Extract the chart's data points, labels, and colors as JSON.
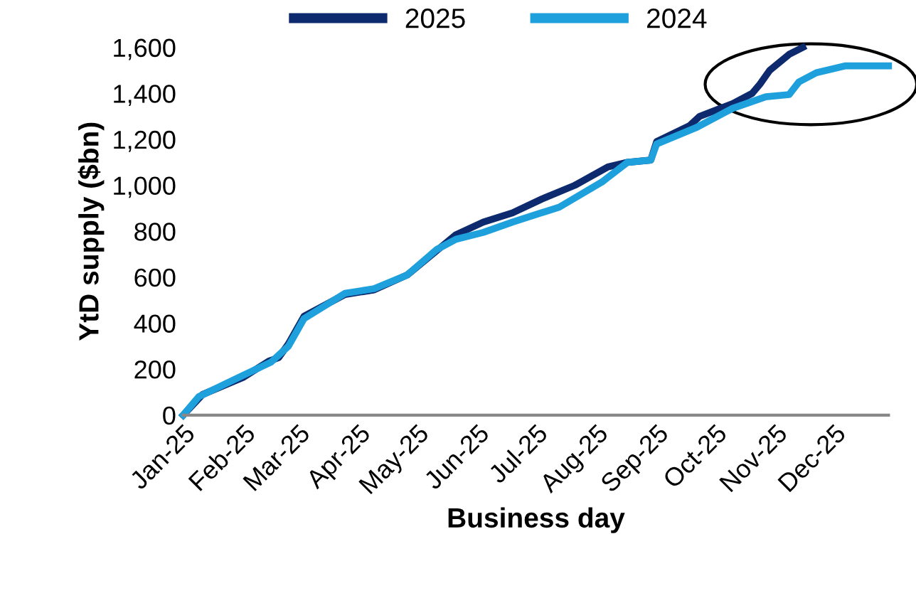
{
  "chart_data": {
    "type": "line",
    "xlabel": "Business day",
    "ylabel": "YtD supply ($bn)",
    "xlim": [
      "2025-01-01",
      "2025-12-29"
    ],
    "xticks": [
      {
        "value": "2025-01-01",
        "label": "Jan-25"
      },
      {
        "value": "2025-02-01",
        "label": "Feb-25"
      },
      {
        "value": "2025-03-01",
        "label": "Mar-25"
      },
      {
        "value": "2025-04-01",
        "label": "Apr-25"
      },
      {
        "value": "2025-05-01",
        "label": "May-25"
      },
      {
        "value": "2025-06-01",
        "label": "Jun-25"
      },
      {
        "value": "2025-07-01",
        "label": "Jul-25"
      },
      {
        "value": "2025-08-01",
        "label": "Aug-25"
      },
      {
        "value": "2025-09-01",
        "label": "Sep-25"
      },
      {
        "value": "2025-10-01",
        "label": "Oct-25"
      },
      {
        "value": "2025-11-01",
        "label": "Nov-25"
      },
      {
        "value": "2025-12-01",
        "label": "Dec-25"
      }
    ],
    "ylim": [
      0,
      1600
    ],
    "yticks": [
      0,
      {
        "value": 200,
        "label": "200"
      },
      {
        "value": 400,
        "label": "400"
      },
      {
        "value": 600,
        "label": "600"
      },
      {
        "value": 800,
        "label": "800"
      },
      {
        "value": 1000,
        "label": "1,000"
      },
      {
        "value": 1200,
        "label": "1,200"
      },
      {
        "value": 1400,
        "label": "1,400"
      },
      {
        "value": 1600,
        "label": "1,600"
      }
    ],
    "grid": false,
    "legend": "top",
    "line_style": "solid",
    "marker": "none",
    "series": [
      {
        "name": "2025",
        "color": "#0d2a6e",
        "x": [
          "2025-01-01",
          "2025-01-11",
          "2025-02-01",
          "2025-02-14",
          "2025-02-19",
          "2025-02-24",
          "2025-03-04",
          "2025-03-25",
          "2025-04-09",
          "2025-04-26",
          "2025-05-11",
          "2025-05-21",
          "2025-06-04",
          "2025-06-19",
          "2025-07-04",
          "2025-07-21",
          "2025-08-07",
          "2025-08-17",
          "2025-08-29",
          "2025-09-01",
          "2025-09-18",
          "2025-09-23",
          "2025-10-10",
          "2025-10-20",
          "2025-10-24",
          "2025-10-29",
          "2025-11-08",
          "2025-11-15"
        ],
        "values": [
          0,
          90,
          165,
          235,
          250,
          310,
          430,
          525,
          545,
          610,
          715,
          785,
          840,
          880,
          940,
          1000,
          1080,
          1100,
          1110,
          1190,
          1260,
          1300,
          1355,
          1400,
          1440,
          1500,
          1570,
          1600
        ]
      },
      {
        "name": "2024",
        "color": "#1ea0dc",
        "x": [
          "2025-01-01",
          "2025-01-09",
          "2025-01-31",
          "2025-02-15",
          "2025-02-24",
          "2025-03-04",
          "2025-03-25",
          "2025-04-09",
          "2025-04-26",
          "2025-05-11",
          "2025-05-21",
          "2025-06-04",
          "2025-06-19",
          "2025-07-13",
          "2025-08-04",
          "2025-08-17",
          "2025-08-29",
          "2025-09-01",
          "2025-09-21",
          "2025-10-10",
          "2025-10-27",
          "2025-11-08",
          "2025-11-13",
          "2025-11-22",
          "2025-12-07",
          "2025-12-29"
        ],
        "values": [
          0,
          80,
          170,
          230,
          300,
          420,
          530,
          550,
          610,
          720,
          765,
          795,
          840,
          905,
          1015,
          1100,
          1110,
          1180,
          1250,
          1335,
          1385,
          1395,
          1450,
          1490,
          1520,
          1520
        ]
      }
    ]
  }
}
